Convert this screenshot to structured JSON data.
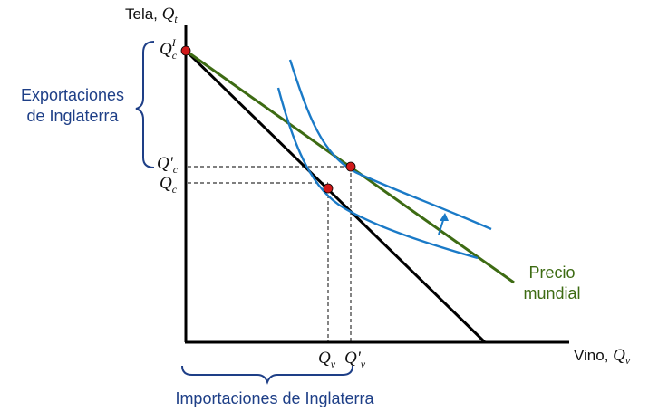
{
  "colors": {
    "axis": "#000000",
    "budget_line": "#000000",
    "price_line": "#3d6b13",
    "indifference": "#1a7ac7",
    "bracket": "#1e3f87",
    "point": "#d11a1a",
    "guide": "#333333"
  },
  "axes": {
    "y_label": "Tela, ",
    "y_symbol": "Q",
    "y_sub": "t",
    "x_label": "Vino, ",
    "x_symbol": "Q",
    "x_sub": "v"
  },
  "ticks": {
    "qc_prime_top": {
      "sym": "Q",
      "sup": "I",
      "sub": "c"
    },
    "qc_prime": {
      "sym": "Q'",
      "sub": "c"
    },
    "qc": {
      "sym": "Q",
      "sub": "c"
    },
    "qv": {
      "sym": "Q",
      "sub": "v"
    },
    "qv_prime": {
      "sym": "Q'",
      "sub": "v"
    }
  },
  "labels": {
    "exports_line1": "Exportaciones",
    "exports_line2": "de Inglaterra",
    "imports": "Importaciones de Inglaterra",
    "world_price_line1": "Precio",
    "world_price_line2": "mundial"
  }
}
